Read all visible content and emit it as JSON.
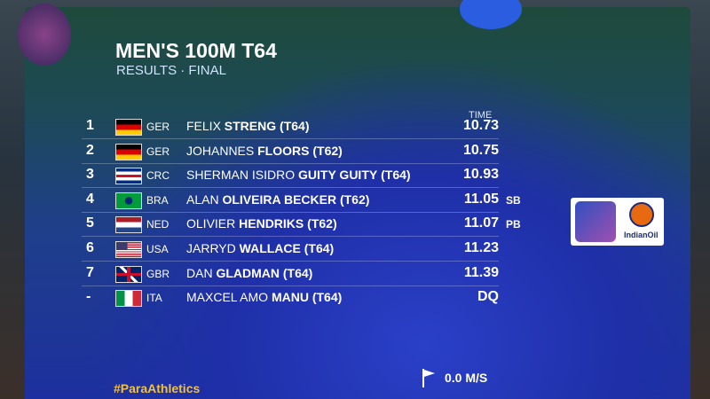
{
  "header": {
    "title": "MEN'S 100M T64",
    "subtitle": "RESULTS · FINAL"
  },
  "table": {
    "time_header": "TIME",
    "rows": [
      {
        "rank": "1",
        "country": "GER",
        "given": "FELIX",
        "family": "STRENG",
        "class": "(T64)",
        "time": "10.73",
        "note": null
      },
      {
        "rank": "2",
        "country": "GER",
        "given": "JOHANNES",
        "family": "FLOORS",
        "class": "(T62)",
        "time": "10.75",
        "note": null
      },
      {
        "rank": "3",
        "country": "CRC",
        "given": "SHERMAN ISIDRO",
        "family": "GUITY GUITY",
        "class": "(T64)",
        "time": "10.93",
        "note": null
      },
      {
        "rank": "4",
        "country": "BRA",
        "given": "ALAN",
        "family": "OLIVEIRA BECKER",
        "class": "(T62)",
        "time": "11.05",
        "note": "SB"
      },
      {
        "rank": "5",
        "country": "NED",
        "given": "OLIVIER",
        "family": "HENDRIKS",
        "class": "(T62)",
        "time": "11.07",
        "note": "PB"
      },
      {
        "rank": "6",
        "country": "USA",
        "given": "JARRYD",
        "family": "WALLACE",
        "class": "(T64)",
        "time": "11.23",
        "note": null
      },
      {
        "rank": "7",
        "country": "GBR",
        "given": "DAN",
        "family": "GLADMAN",
        "class": "(T64)",
        "time": "11.39",
        "note": null
      },
      {
        "rank": "-",
        "country": "ITA",
        "given": "MAXCEL AMO",
        "family": "MANU",
        "class": "(T64)",
        "time": "DQ",
        "note": null
      }
    ]
  },
  "footer": {
    "hashtag": "#ParaAthletics",
    "wind": "0.0 M/S"
  },
  "sponsor": {
    "name": "IndianOil"
  }
}
